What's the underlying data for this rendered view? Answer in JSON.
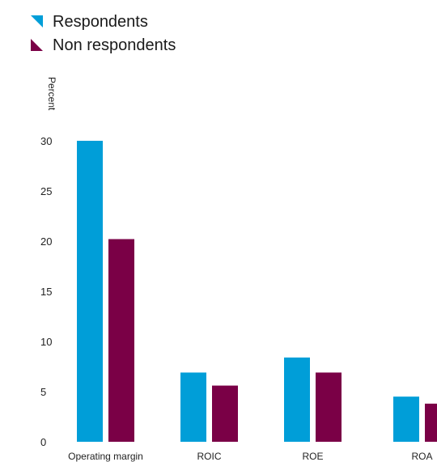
{
  "chart_data": {
    "type": "bar",
    "title": "",
    "ylabel": "Percent",
    "xlabel": "",
    "categories": [
      "Operating margin",
      "ROIC",
      "ROE",
      "ROA"
    ],
    "series": [
      {
        "name": "Respondents",
        "color": "#009ED8",
        "values": [
          30,
          6.9,
          8.4,
          4.5
        ]
      },
      {
        "name": "Non respondents",
        "color": "#7A0046",
        "values": [
          20.2,
          5.6,
          6.9,
          3.8
        ]
      }
    ],
    "ylim": [
      0,
      30
    ],
    "yticks": [
      0,
      5,
      10,
      15,
      20,
      25,
      30
    ],
    "grid": false,
    "legend": "top-left"
  }
}
